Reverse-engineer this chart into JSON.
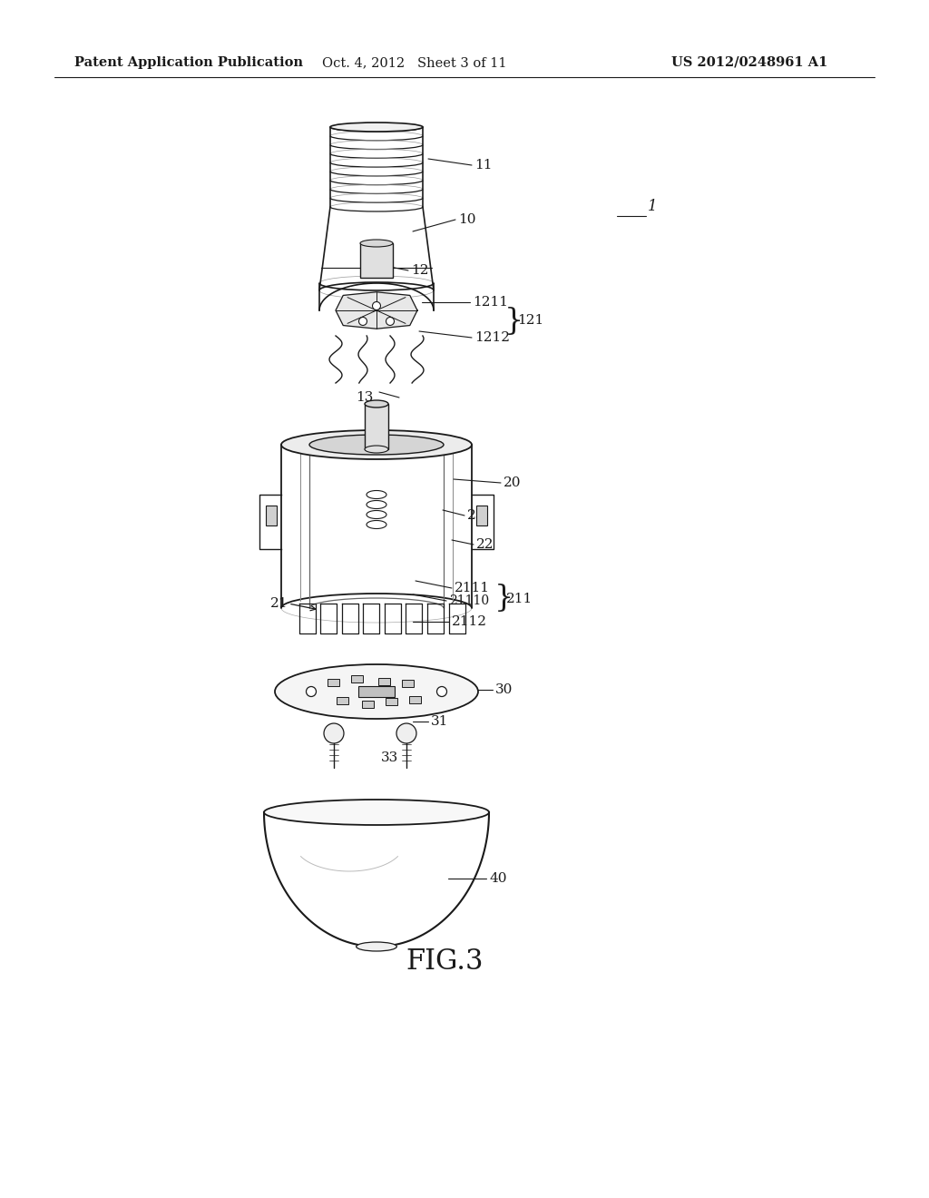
{
  "background_color": "#ffffff",
  "header_left": "Patent Application Publication",
  "header_center": "Oct. 4, 2012   Sheet 3 of 11",
  "header_right": "US 2012/0248961 A1",
  "figure_label": "FIG.3",
  "line_color": "#1a1a1a",
  "text_color": "#1a1a1a",
  "header_fontsize": 10.5,
  "label_fontsize": 11,
  "fig_label_fontsize": 22
}
